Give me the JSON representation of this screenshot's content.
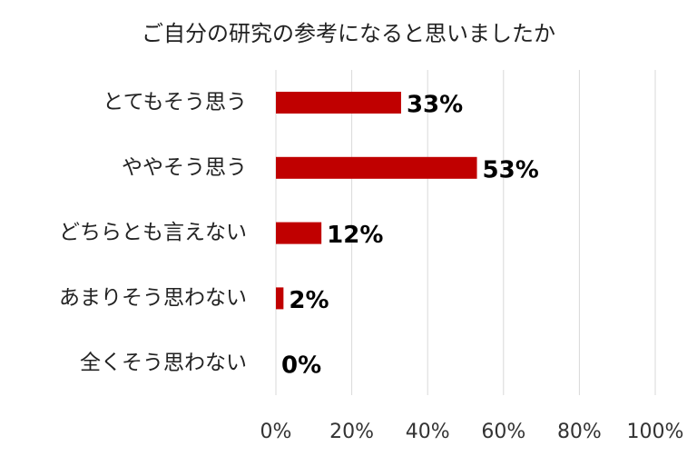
{
  "chart_data": {
    "type": "bar",
    "orientation": "horizontal",
    "title": "ご自分の研究の参考になると思いましたか",
    "categories": [
      "とてもそう思う",
      "ややそう思う",
      "どちらとも言えない",
      "あまりそう思わない",
      "全くそう思わない"
    ],
    "values": [
      33,
      53,
      12,
      2,
      0
    ],
    "value_labels": [
      "33%",
      "53%",
      "12%",
      "2%",
      "0%"
    ],
    "color": "#c00000",
    "xlim": [
      0,
      100
    ],
    "xticks": [
      {
        "value": 0,
        "label": "0%"
      },
      {
        "value": 20,
        "label": "20%"
      },
      {
        "value": 40,
        "label": "40%"
      },
      {
        "value": 60,
        "label": "60%"
      },
      {
        "value": 80,
        "label": "80%"
      },
      {
        "value": 100,
        "label": "100%"
      }
    ],
    "grid": true
  }
}
